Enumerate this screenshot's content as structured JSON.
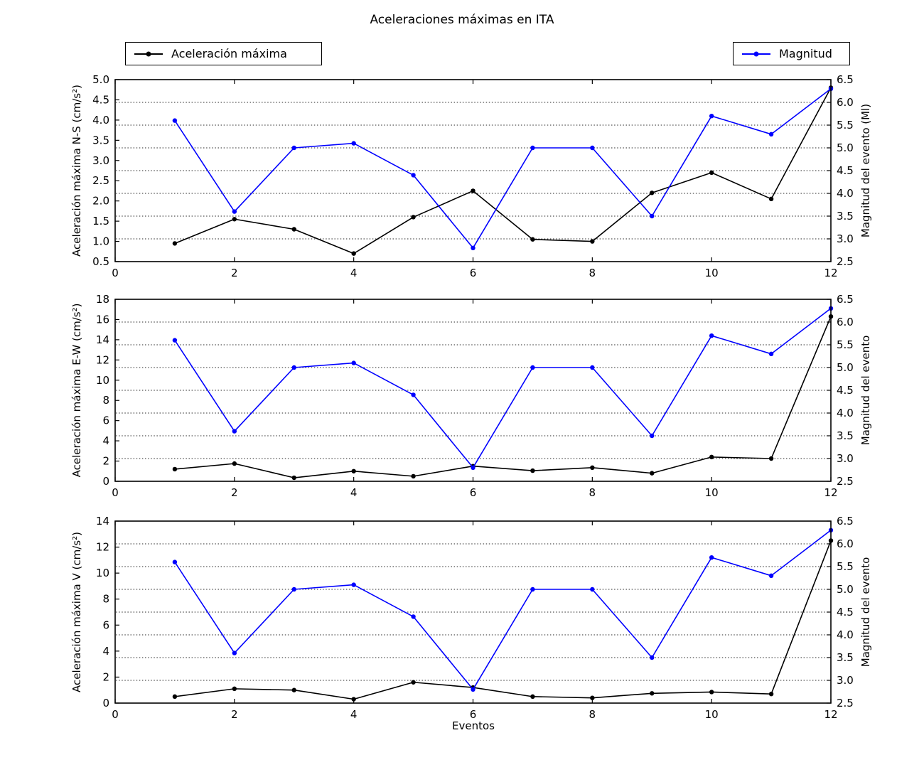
{
  "figure_title": "Aceleraciones máximas en ITA",
  "xlabel": "Eventos",
  "legend": [
    {
      "label": "Aceleración máxima",
      "color": "#000000"
    },
    {
      "label": "Magnitud",
      "color": "#0000ff"
    }
  ],
  "colors": {
    "acceleration": "#000000",
    "magnitude": "#0000ff",
    "grid": "#000000",
    "frame": "#000000"
  },
  "chart_data": [
    {
      "type": "line",
      "ylabel_left": "Aceleración máxima N-S (cm/s²)",
      "ylabel_right": "Magnitud del evento (Ml)",
      "x": [
        1,
        2,
        3,
        4,
        5,
        6,
        7,
        8,
        9,
        10,
        11,
        12
      ],
      "xlim": [
        0,
        12
      ],
      "xticks": [
        "0",
        "2",
        "4",
        "6",
        "8",
        "10",
        "12"
      ],
      "ylim_left": [
        0.5,
        5.0
      ],
      "yticks_left": [
        "0.5",
        "1.0",
        "1.5",
        "2.0",
        "2.5",
        "3.0",
        "3.5",
        "4.0",
        "4.5",
        "5.0"
      ],
      "ylim_right": [
        2.5,
        6.5
      ],
      "yticks_right": [
        "2.5",
        "3.0",
        "3.5",
        "4.0",
        "4.5",
        "5.0",
        "5.5",
        "6.0",
        "6.5"
      ],
      "grid_values_right": [
        3.0,
        3.5,
        4.0,
        4.5,
        5.0,
        5.5,
        6.0
      ],
      "grid_style": "dotted",
      "legend_position": "above",
      "series": [
        {
          "name": "Aceleración máxima",
          "axis": "left",
          "color": "#000000",
          "values": [
            0.95,
            1.55,
            1.3,
            0.7,
            1.6,
            2.25,
            1.05,
            1.0,
            2.2,
            2.7,
            2.05,
            4.8
          ]
        },
        {
          "name": "Magnitud",
          "axis": "right",
          "color": "#0000ff",
          "values": [
            5.6,
            3.6,
            5.0,
            5.1,
            4.4,
            2.8,
            5.0,
            5.0,
            3.5,
            5.7,
            5.3,
            6.3
          ]
        }
      ]
    },
    {
      "type": "line",
      "ylabel_left": "Aceleración máxima E-W (cm/s²)",
      "ylabel_right": "Magnitud del evento",
      "x": [
        1,
        2,
        3,
        4,
        5,
        6,
        7,
        8,
        9,
        10,
        11,
        12
      ],
      "xlim": [
        0,
        12
      ],
      "xticks": [
        "0",
        "2",
        "4",
        "6",
        "8",
        "10",
        "12"
      ],
      "ylim_left": [
        0,
        18
      ],
      "yticks_left": [
        "0",
        "2",
        "4",
        "6",
        "8",
        "10",
        "12",
        "14",
        "16",
        "18"
      ],
      "ylim_right": [
        2.5,
        6.5
      ],
      "yticks_right": [
        "2.5",
        "3.0",
        "3.5",
        "4.0",
        "4.5",
        "5.0",
        "5.5",
        "6.0",
        "6.5"
      ],
      "grid_values_right": [
        3.0,
        3.5,
        4.0,
        4.5,
        5.0,
        5.5,
        6.0
      ],
      "grid_style": "dotted",
      "series": [
        {
          "name": "Aceleración máxima",
          "axis": "left",
          "color": "#000000",
          "values": [
            1.2,
            1.75,
            0.35,
            1.0,
            0.5,
            1.5,
            1.05,
            1.35,
            0.8,
            2.4,
            2.25,
            16.3
          ]
        },
        {
          "name": "Magnitud",
          "axis": "right",
          "color": "#0000ff",
          "values": [
            5.6,
            3.6,
            5.0,
            5.1,
            4.4,
            2.8,
            5.0,
            5.0,
            3.5,
            5.7,
            5.3,
            6.3
          ]
        }
      ]
    },
    {
      "type": "line",
      "ylabel_left": "Aceleración máxima V (cm/s²)",
      "ylabel_right": "Magnitud del evento",
      "x": [
        1,
        2,
        3,
        4,
        5,
        6,
        7,
        8,
        9,
        10,
        11,
        12
      ],
      "xlim": [
        0,
        12
      ],
      "xticks": [
        "0",
        "2",
        "4",
        "6",
        "8",
        "10",
        "12"
      ],
      "ylim_left": [
        0,
        14
      ],
      "yticks_left": [
        "0",
        "2",
        "4",
        "6",
        "8",
        "10",
        "12",
        "14"
      ],
      "ylim_right": [
        2.5,
        6.5
      ],
      "yticks_right": [
        "2.5",
        "3.0",
        "3.5",
        "4.0",
        "4.5",
        "5.0",
        "5.5",
        "6.0",
        "6.5"
      ],
      "grid_values_right": [
        3.0,
        3.5,
        4.0,
        4.5,
        5.0,
        5.5,
        6.0
      ],
      "grid_style": "dotted",
      "series": [
        {
          "name": "Aceleración máxima",
          "axis": "left",
          "color": "#000000",
          "values": [
            0.5,
            1.1,
            1.0,
            0.3,
            1.6,
            1.2,
            0.5,
            0.4,
            0.75,
            0.85,
            0.7,
            12.5
          ]
        },
        {
          "name": "Magnitud",
          "axis": "right",
          "color": "#0000ff",
          "values": [
            5.6,
            3.6,
            5.0,
            5.1,
            4.4,
            2.8,
            5.0,
            5.0,
            3.5,
            5.7,
            5.3,
            6.3
          ]
        }
      ]
    }
  ]
}
